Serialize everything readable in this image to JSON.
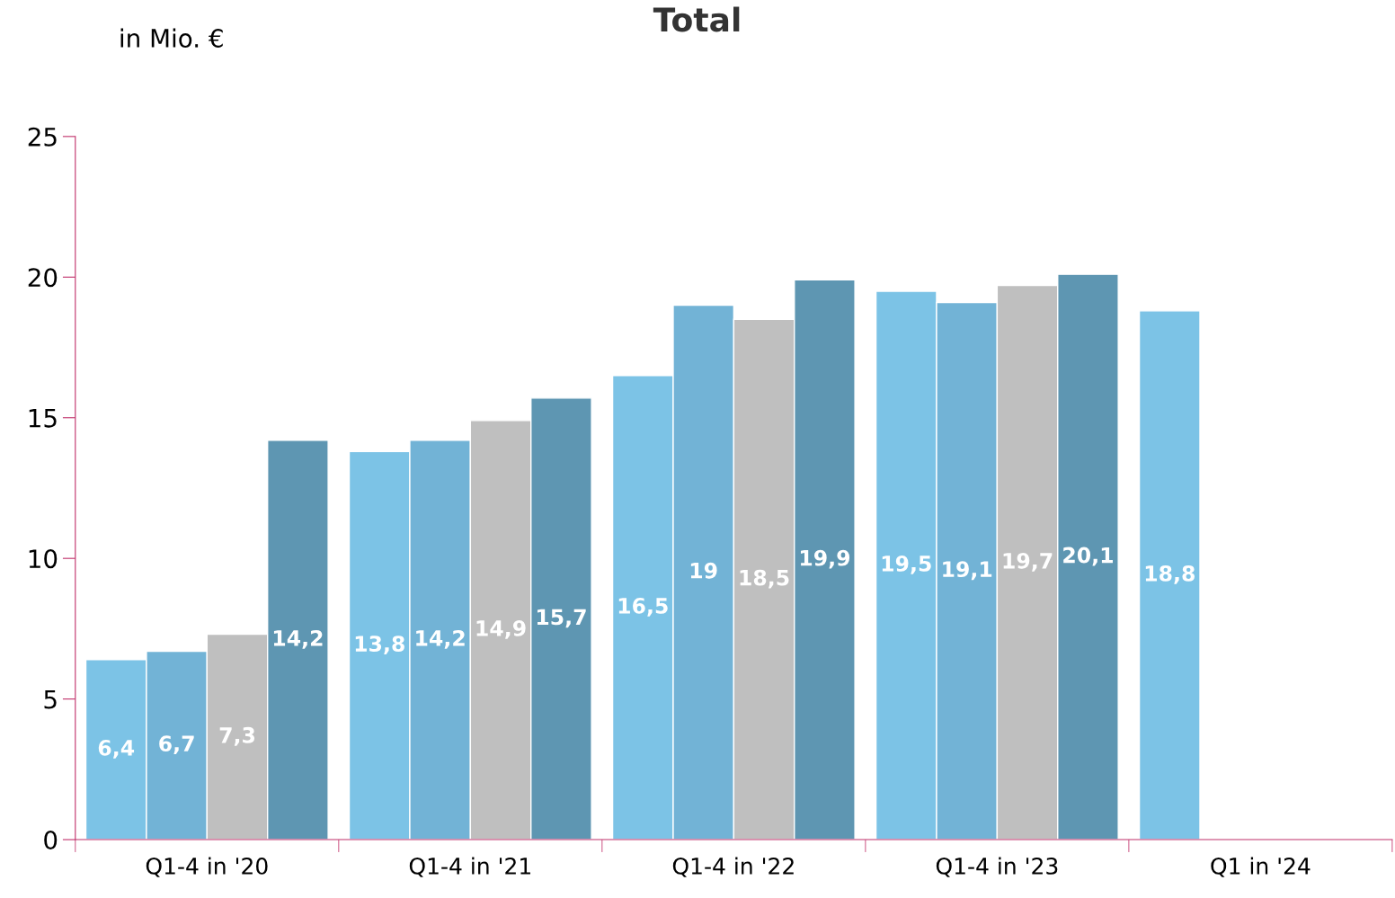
{
  "chart_data": {
    "type": "bar",
    "title": "Total",
    "ylabel": "in Mio. €",
    "categories": [
      "Q1-4 in '20",
      "Q1-4 in '21",
      "Q1-4 in '22",
      "Q1-4 in '23",
      "Q1 in '24"
    ],
    "series": [
      {
        "color": "#7cc3e6",
        "values": [
          6.4,
          13.8,
          16.5,
          19.5,
          18.8
        ],
        "value_labels": [
          "6,4",
          "13,8",
          "16,5",
          "19,5",
          "18,8"
        ]
      },
      {
        "color": "#72b3d6",
        "values": [
          6.7,
          14.2,
          19,
          19.1,
          null
        ],
        "value_labels": [
          "6,7",
          "14,2",
          "19",
          "19,1",
          null
        ]
      },
      {
        "color": "#bfbfbf",
        "values": [
          7.3,
          14.9,
          18.5,
          19.7,
          null
        ],
        "value_labels": [
          "7,3",
          "14,9",
          "18,5",
          "19,7",
          null
        ]
      },
      {
        "color": "#5e96b2",
        "values": [
          14.2,
          15.7,
          19.9,
          20.1,
          null
        ],
        "value_labels": [
          "14,2",
          "15,7",
          "19,9",
          "20,1",
          null
        ]
      }
    ],
    "ylim": [
      0,
      25
    ],
    "yticks": [
      0,
      5,
      10,
      15,
      20,
      25
    ],
    "grid": false,
    "legend": false
  }
}
